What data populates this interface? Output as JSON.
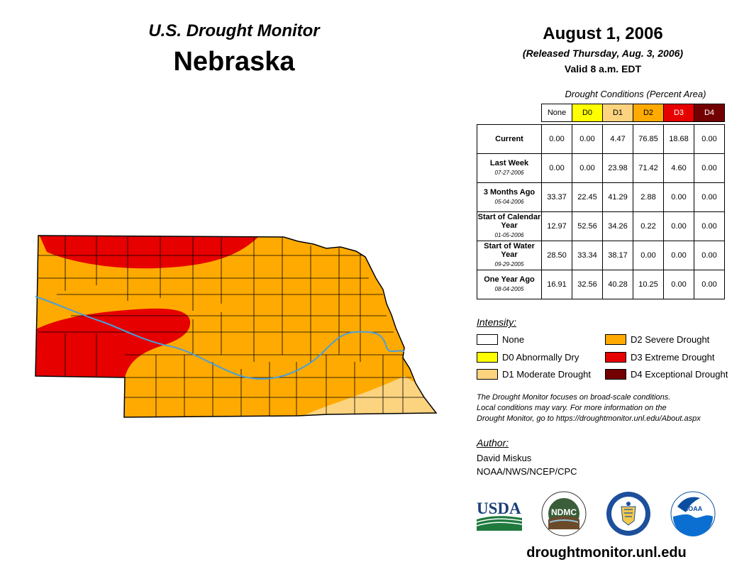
{
  "header": {
    "monitor_title": "U.S. Drought Monitor",
    "state": "Nebraska",
    "date": "August 1, 2006",
    "released": "(Released Thursday, Aug. 3, 2006)",
    "valid": "Valid 8 a.m. EDT"
  },
  "table": {
    "caption": "Drought Conditions (Percent Area)",
    "columns": [
      "None",
      "D0",
      "D1",
      "D2",
      "D3",
      "D4"
    ],
    "column_colors": [
      "#ffffff",
      "#ffff00",
      "#fcd37f",
      "#ffaa00",
      "#e60000",
      "#730000"
    ],
    "rows": [
      {
        "label": "Current",
        "date": "",
        "values": [
          "0.00",
          "0.00",
          "4.47",
          "76.85",
          "18.68",
          "0.00"
        ]
      },
      {
        "label": "Last Week",
        "date": "07-27-2006",
        "values": [
          "0.00",
          "0.00",
          "23.98",
          "71.42",
          "4.60",
          "0.00"
        ]
      },
      {
        "label": "3 Months Ago",
        "date": "05-04-2006",
        "values": [
          "33.37",
          "22.45",
          "41.29",
          "2.88",
          "0.00",
          "0.00"
        ]
      },
      {
        "label": "Start of Calendar Year",
        "date": "01-05-2006",
        "values": [
          "12.97",
          "52.56",
          "34.26",
          "0.22",
          "0.00",
          "0.00"
        ]
      },
      {
        "label": "Start of Water Year",
        "date": "09-29-2005",
        "values": [
          "28.50",
          "33.34",
          "38.17",
          "0.00",
          "0.00",
          "0.00"
        ]
      },
      {
        "label": "One Year Ago",
        "date": "08-04-2005",
        "values": [
          "16.91",
          "32.56",
          "40.28",
          "10.25",
          "0.00",
          "0.00"
        ]
      }
    ]
  },
  "legend": {
    "title": "Intensity:",
    "items": [
      {
        "label": "None",
        "color": "#ffffff"
      },
      {
        "label": "D0 Abnormally Dry",
        "color": "#ffff00"
      },
      {
        "label": "D1 Moderate Drought",
        "color": "#fcd37f"
      },
      {
        "label": "D2 Severe Drought",
        "color": "#ffaa00"
      },
      {
        "label": "D3 Extreme Drought",
        "color": "#e60000"
      },
      {
        "label": "D4 Exceptional Drought",
        "color": "#730000"
      }
    ]
  },
  "note": {
    "line1": "The Drought Monitor focuses on broad-scale conditions.",
    "line2": "Local conditions may vary. For more information on the",
    "line3": "Drought Monitor, go to https://droughtmonitor.unl.edu/About.aspx"
  },
  "author": {
    "title": "Author:",
    "name": "David Miskus",
    "org": "NOAA/NWS/NCEP/CPC"
  },
  "logos": {
    "usda": "USDA",
    "ndmc": "NDMC",
    "noaa": "NOAA"
  },
  "url": "droughtmonitor.unl.edu",
  "colors": {
    "river": "#4a9fd8",
    "county_lines": "#000000"
  }
}
